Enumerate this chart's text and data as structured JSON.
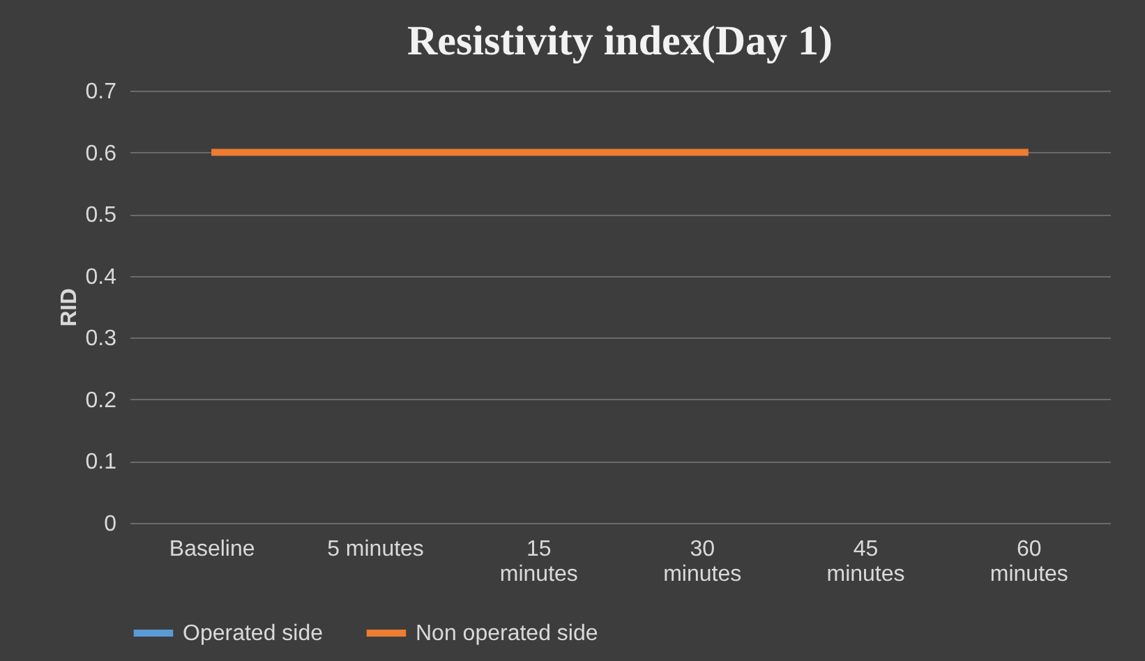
{
  "chart_data": {
    "type": "line",
    "title": "Resistivity index(Day 1)",
    "ylabel": "RID",
    "categories": [
      "Baseline",
      "5 minutes",
      "15 minutes",
      "30 minutes",
      "45 minutes",
      "60 minutes"
    ],
    "series": [
      {
        "name": "Operated side",
        "color": "#5b9bd5",
        "values": [
          null,
          null,
          null,
          null,
          null,
          null
        ]
      },
      {
        "name": "Non operated side",
        "color": "#ed7d31",
        "values": [
          0.6,
          0.6,
          0.6,
          0.6,
          0.6,
          0.6
        ]
      }
    ],
    "ylim": [
      0,
      0.7
    ],
    "yticks": [
      0,
      0.1,
      0.2,
      0.3,
      0.4,
      0.5,
      0.6,
      0.7
    ],
    "grid": "y",
    "legend": "bottom",
    "marker": "none",
    "line_style": "solid"
  }
}
